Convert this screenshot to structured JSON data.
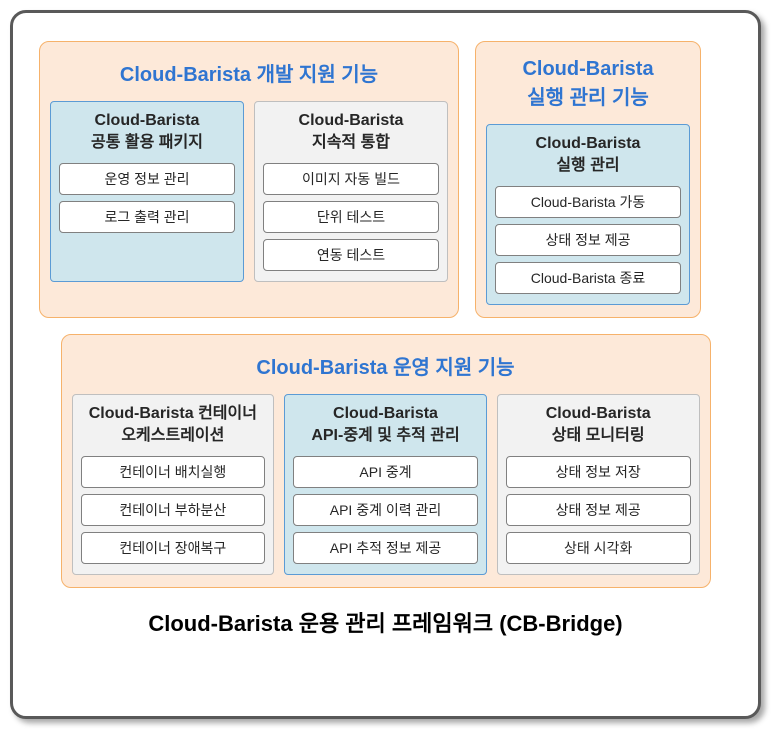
{
  "colors": {
    "frame_border": "#595959",
    "group_bg": "#fde9d9",
    "group_border": "#f6b26b",
    "title_blue": "#2f75d1",
    "module_white_bg": "#f2f2f2",
    "module_white_border": "#bfbfbf",
    "module_blue_bg": "#cfe6ed",
    "module_blue_border": "#5b9bd5",
    "item_bg": "#ffffff",
    "item_border": "#808080"
  },
  "dev_group": {
    "title": "Cloud-Barista 개발 지원 기능",
    "modules": [
      {
        "highlight": true,
        "title": "Cloud-Barista\n공통 활용 패키지",
        "items": [
          "운영 정보 관리",
          "로그 출력 관리"
        ]
      },
      {
        "highlight": false,
        "title": "Cloud-Barista\n지속적 통합",
        "items": [
          "이미지 자동 빌드",
          "단위 테스트",
          "연동 테스트"
        ]
      }
    ]
  },
  "run_group": {
    "title": "Cloud-Barista\n실행 관리 기능",
    "modules": [
      {
        "highlight": true,
        "title": "Cloud-Barista\n실행 관리",
        "items": [
          "Cloud-Barista 가동",
          "상태 정보 제공",
          "Cloud-Barista 종료"
        ]
      }
    ]
  },
  "ops_group": {
    "title": "Cloud-Barista 운영 지원 기능",
    "modules": [
      {
        "highlight": false,
        "title": "Cloud-Barista 컨테이너\n오케스트레이션",
        "items": [
          "컨테이너 배치실행",
          "컨테이너 부하분산",
          "컨테이너 장애복구"
        ]
      },
      {
        "highlight": true,
        "title": "Cloud-Barista\nAPI-중계 및 추적 관리",
        "items": [
          "API 중계",
          "API 중계 이력 관리",
          "API 추적 정보 제공"
        ]
      },
      {
        "highlight": false,
        "title": "Cloud-Barista\n상태 모니터링",
        "items": [
          "상태 정보 저장",
          "상태 정보 제공",
          "상태 시각화"
        ]
      }
    ]
  },
  "footer": "Cloud-Barista 운용 관리 프레임워크 (CB-Bridge)"
}
